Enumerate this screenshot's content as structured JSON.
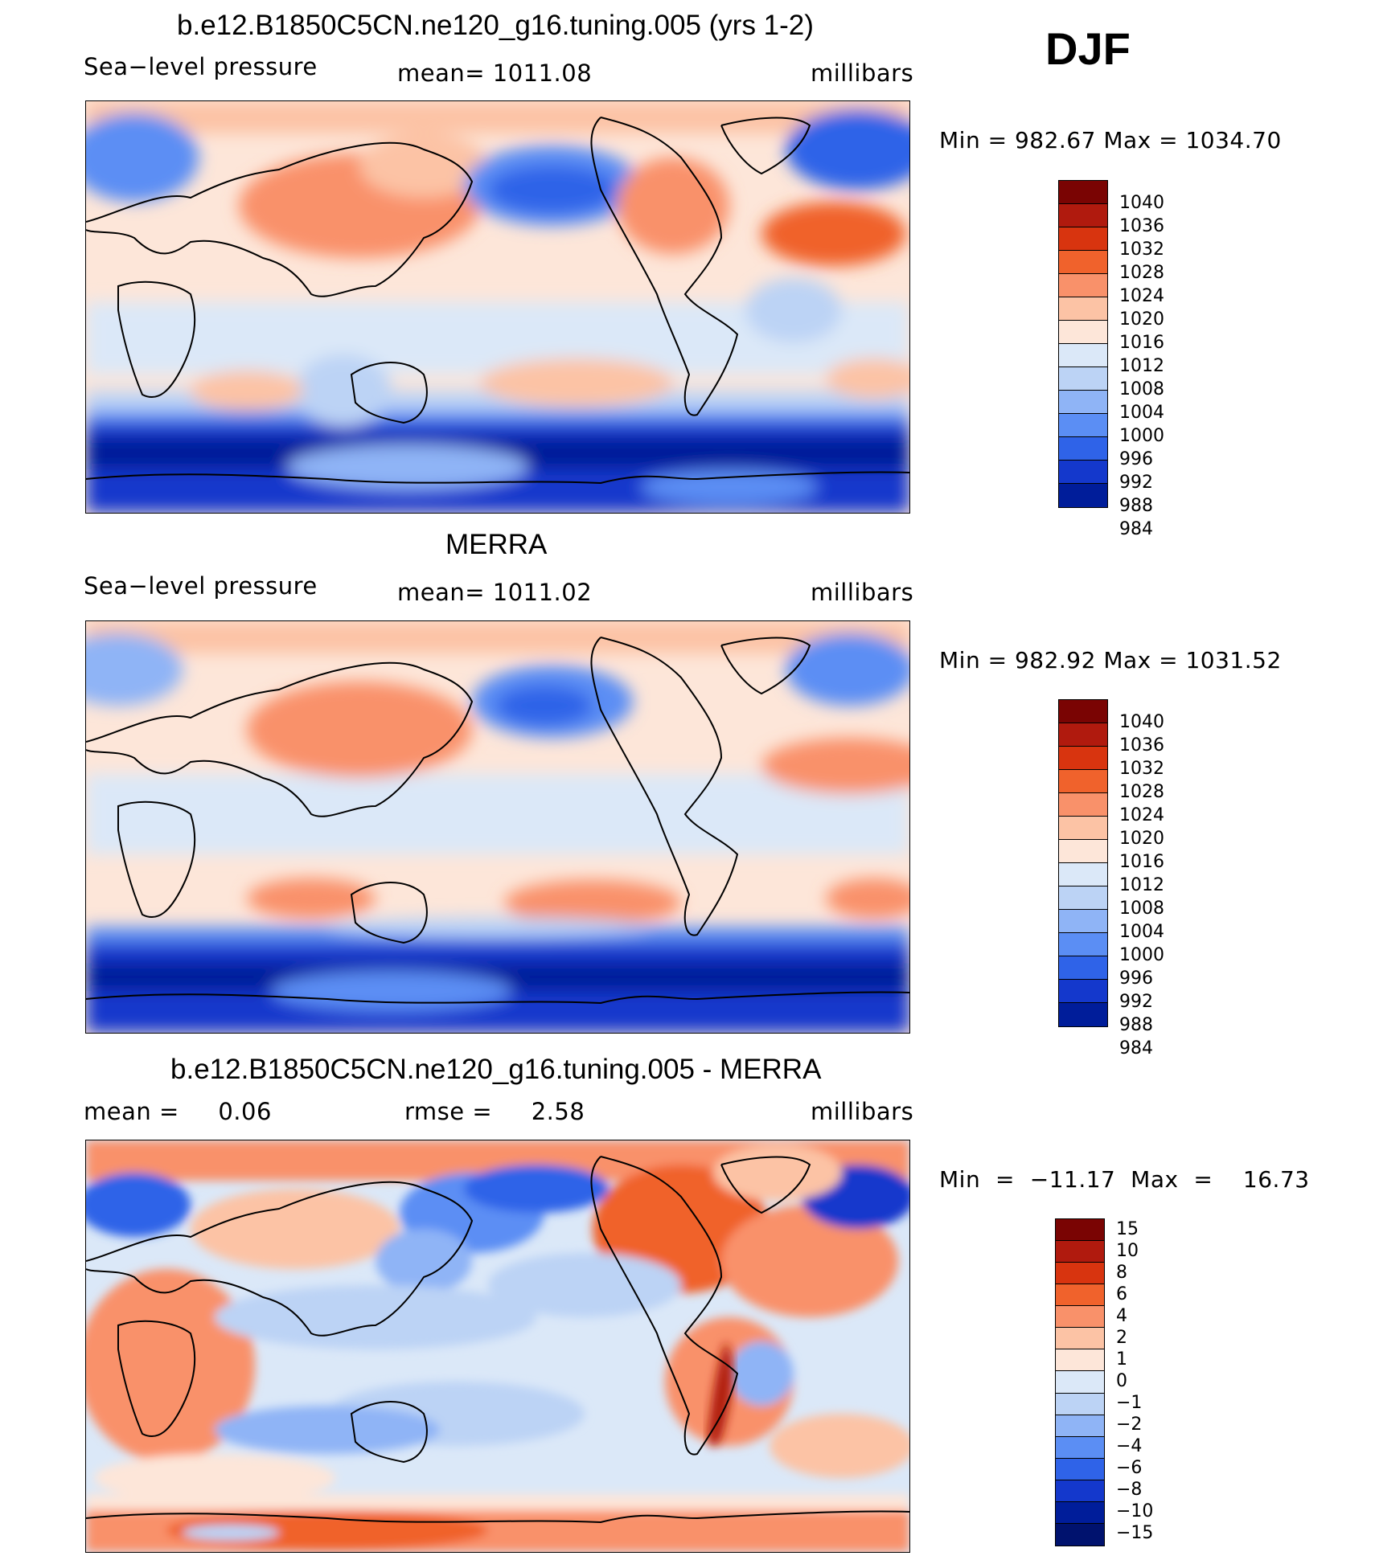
{
  "season": "DJF",
  "panels": [
    {
      "title": "b.e12.B1850C5CN.ne120_g16.tuning.005 (yrs 1-2)",
      "left_label": "Sea−level pressure",
      "center_label": "mean=  1011.08",
      "units": "millibars",
      "minmax": "Min  =  982.67  Max  =  1034.70",
      "colorbar": {
        "colors": [
          "#7a0403",
          "#b01a0e",
          "#d8340f",
          "#f0622c",
          "#f9916a",
          "#fcc3a5",
          "#fde6d9",
          "#dbe8f8",
          "#bcd3f5",
          "#8fb4f6",
          "#5b8ef4",
          "#2f63e8",
          "#1438cc",
          "#001d9a"
        ],
        "labels": [
          "1040",
          "1036",
          "1032",
          "1028",
          "1024",
          "1020",
          "1016",
          "1012",
          "1008",
          "1004",
          "1000",
          "996",
          "992",
          "988",
          "984"
        ]
      }
    },
    {
      "title": "MERRA",
      "left_label": "Sea−level pressure",
      "center_label": "mean=  1011.02",
      "units": "millibars",
      "minmax": "Min  =  982.92  Max  =  1031.52",
      "colorbar": {
        "colors": [
          "#7a0403",
          "#b01a0e",
          "#d8340f",
          "#f0622c",
          "#f9916a",
          "#fcc3a5",
          "#fde6d9",
          "#dbe8f8",
          "#bcd3f5",
          "#8fb4f6",
          "#5b8ef4",
          "#2f63e8",
          "#1438cc",
          "#001d9a"
        ],
        "labels": [
          "1040",
          "1036",
          "1032",
          "1028",
          "1024",
          "1020",
          "1016",
          "1012",
          "1008",
          "1004",
          "1000",
          "996",
          "992",
          "988",
          "984"
        ]
      }
    },
    {
      "title": "b.e12.B1850C5CN.ne120_g16.tuning.005 - MERRA",
      "left_label": "mean =     0.06",
      "center_label": "rmse =     2.58",
      "units": "millibars",
      "minmax": "Min  =  −11.17  Max  =    16.73",
      "colorbar": {
        "colors": [
          "#7a0403",
          "#b01a0e",
          "#d8340f",
          "#f0622c",
          "#f9916a",
          "#fcc3a5",
          "#fde6d9",
          "#dbe8f8",
          "#bcd3f5",
          "#8fb4f6",
          "#5b8ef4",
          "#2f63e8",
          "#1438cc",
          "#001d9a",
          "#00126e"
        ],
        "labels": [
          "15",
          "10",
          "8",
          "6",
          "4",
          "2",
          "1",
          "0",
          "−1",
          "−2",
          "−4",
          "−6",
          "−8",
          "−10",
          "−15"
        ]
      }
    }
  ]
}
